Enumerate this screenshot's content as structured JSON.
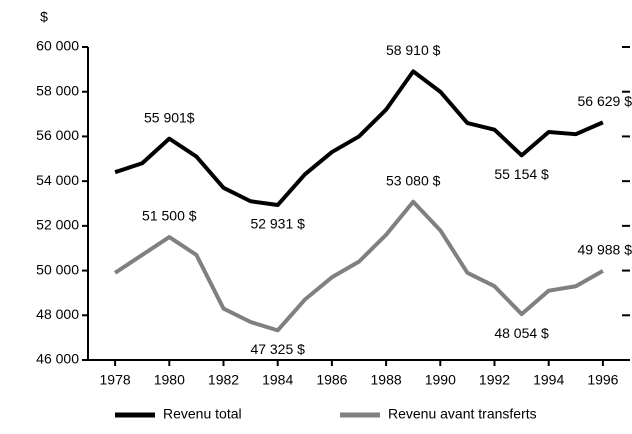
{
  "chart_data": {
    "type": "line",
    "y_label": "$",
    "x": [
      1978,
      1979,
      1980,
      1981,
      1982,
      1983,
      1984,
      1985,
      1986,
      1987,
      1988,
      1989,
      1990,
      1991,
      1992,
      1993,
      1994,
      1995,
      1996
    ],
    "series": [
      {
        "name": "Revenu total",
        "color": "#000000",
        "values": [
          54400,
          54800,
          55901,
          55100,
          53700,
          53100,
          52931,
          54300,
          55300,
          56000,
          57200,
          58910,
          58000,
          56600,
          56300,
          55154,
          56200,
          56100,
          56629
        ],
        "value_labels": [
          null,
          null,
          "55 901$",
          null,
          null,
          null,
          "52 931 $",
          null,
          null,
          null,
          null,
          "58 910 $",
          null,
          null,
          null,
          "55 154 $",
          null,
          null,
          "56 629 $"
        ]
      },
      {
        "name": "Revenu avant transferts",
        "color": "#808080",
        "values": [
          49900,
          50700,
          51500,
          50700,
          48300,
          47700,
          47325,
          48700,
          49700,
          50400,
          51600,
          53080,
          51800,
          49900,
          49300,
          48054,
          49100,
          49300,
          49988
        ],
        "value_labels": [
          null,
          null,
          "51 500 $",
          null,
          null,
          null,
          "47 325 $",
          null,
          null,
          null,
          null,
          "53 080 $",
          null,
          null,
          null,
          "48 054 $",
          null,
          null,
          "49 988 $"
        ]
      }
    ],
    "xlim": [
      1977,
      1997
    ],
    "xticks": [
      1978,
      1980,
      1982,
      1984,
      1986,
      1988,
      1990,
      1992,
      1994,
      1996
    ],
    "ylim": [
      46000,
      60000
    ],
    "yticks": [
      {
        "value": 46000,
        "label": "46 000"
      },
      {
        "value": 48000,
        "label": "48 000"
      },
      {
        "value": 50000,
        "label": "50 000"
      },
      {
        "value": 52000,
        "label": "52 000"
      },
      {
        "value": 54000,
        "label": "54 000"
      },
      {
        "value": 56000,
        "label": "56 000"
      },
      {
        "value": 58000,
        "label": "58 000"
      },
      {
        "value": 60000,
        "label": "60 000"
      }
    ],
    "legend": "bottom"
  }
}
